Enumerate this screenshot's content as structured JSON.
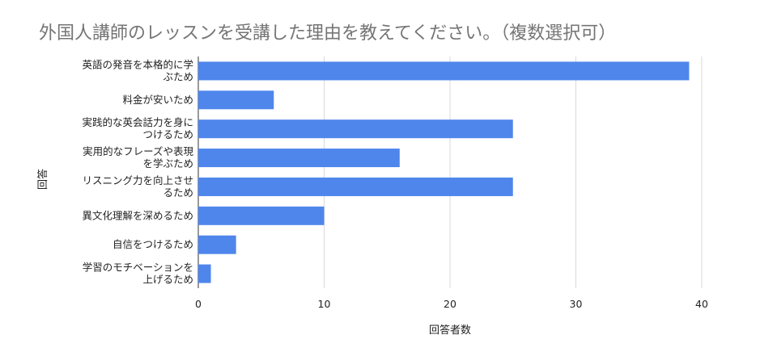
{
  "chart_data": {
    "type": "bar",
    "orientation": "horizontal",
    "title": "外国人講師のレッスンを受講した理由を教えてください。（複数選択可）",
    "xlabel": "回答者数",
    "ylabel": "回答",
    "categories": [
      [
        "英語の発音を本格的に学",
        "ぶため"
      ],
      [
        "料金が安いため"
      ],
      [
        "実践的な英会話力を身に",
        "つけるため"
      ],
      [
        "実用的なフレーズや表現",
        "を学ぶため"
      ],
      [
        "リスニング力を向上させ",
        "るため"
      ],
      [
        "異文化理解を深めるため"
      ],
      [
        "自信をつけるため"
      ],
      [
        "学習のモチベーションを",
        "上げるため"
      ]
    ],
    "values": [
      39,
      6,
      25,
      16,
      25,
      10,
      3,
      1
    ],
    "xlim": [
      0,
      40
    ],
    "xticks": [
      0,
      10,
      20,
      30,
      40
    ],
    "grid": true,
    "bar_color": "#4f86ec"
  }
}
